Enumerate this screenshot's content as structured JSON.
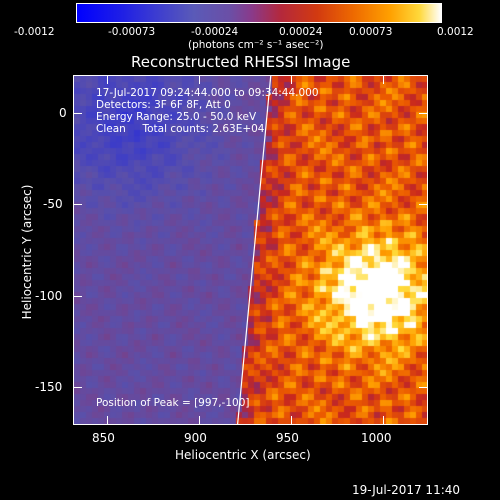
{
  "colorbar": {
    "ticks": [
      "-0.0012",
      "-0.00073",
      "-0.00024",
      "0.00024",
      "0.00073",
      "0.0012"
    ],
    "units": "(photons cm⁻² s⁻¹ asec⁻²)"
  },
  "plot": {
    "title": "Reconstructed RHESSI Image",
    "xlabel": "Heliocentric X (arcsec)",
    "ylabel": "Heliocentric Y (arcsec)",
    "xticks": [
      "850",
      "900",
      "950",
      "1000"
    ],
    "yticks": [
      "0",
      "-50",
      "-100",
      "-150"
    ],
    "info_lines": [
      "17-Jul-2017 09:24:44.000 to 09:34:44.000",
      "Detectors: 3F 6F 8F, Att 0",
      "Energy Range: 25.0 - 50.0 keV",
      "Clean     Total counts: 2.63E+04"
    ],
    "peak_text": "Position of Peak = [997,-100]"
  },
  "footer": {
    "timestamp": "19-Jul-2017 11:40"
  },
  "colors": {
    "background": "#000000",
    "foreground": "#ffffff",
    "limb": "#ffffff"
  },
  "chart_data": {
    "type": "heatmap",
    "title": "Reconstructed RHESSI Image",
    "xlabel": "Heliocentric X (arcsec)",
    "ylabel": "Heliocentric Y (arcsec)",
    "xlim": [
      833,
      1025
    ],
    "ylim": [
      -172,
      18
    ],
    "clim": [
      -0.0012,
      0.0012
    ],
    "colormap": "blue-purple-red-yellow-white",
    "peak": {
      "x": 997,
      "y": -100
    },
    "limb_line": [
      [
        940,
        18
      ],
      [
        922,
        -172
      ]
    ]
  }
}
